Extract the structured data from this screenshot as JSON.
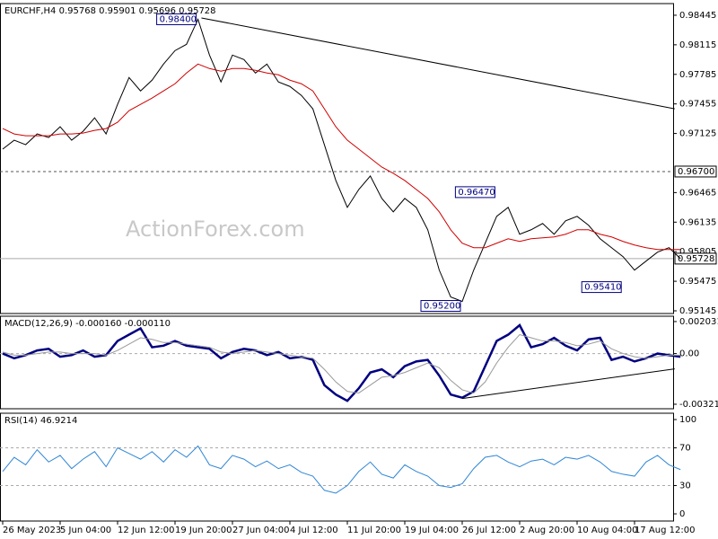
{
  "chart_data": [
    {
      "type": "line",
      "title": "EURCHF,H4  0.95768 0.95901 0.95696 0.95728",
      "watermark": "ActionForex.com",
      "ylim": [
        0.95115,
        0.98575
      ],
      "yticks": [
        0.98445,
        0.98115,
        0.97785,
        0.97455,
        0.97125,
        0.96465,
        0.96135,
        0.95805,
        0.95475,
        0.95145
      ],
      "series": [
        {
          "color": "#000000",
          "values": [
            0.9695,
            0.9705,
            0.97,
            0.9712,
            0.9708,
            0.972,
            0.9705,
            0.9715,
            0.973,
            0.9712,
            0.9745,
            0.9775,
            0.976,
            0.9772,
            0.979,
            0.9805,
            0.9812,
            0.984,
            0.98,
            0.977,
            0.98,
            0.9795,
            0.978,
            0.979,
            0.977,
            0.9765,
            0.9755,
            0.974,
            0.97,
            0.966,
            0.963,
            0.965,
            0.9665,
            0.964,
            0.9625,
            0.964,
            0.963,
            0.9605,
            0.956,
            0.953,
            0.9525,
            0.956,
            0.959,
            0.962,
            0.963,
            0.96,
            0.9605,
            0.9612,
            0.96,
            0.9615,
            0.962,
            0.961,
            0.9595,
            0.9585,
            0.9575,
            0.956,
            0.957,
            0.958,
            0.9585,
            0.95728
          ]
        },
        {
          "color": "#d00000",
          "values": [
            0.9718,
            0.9712,
            0.971,
            0.971,
            0.971,
            0.9712,
            0.9712,
            0.9713,
            0.9716,
            0.9718,
            0.9725,
            0.9738,
            0.9745,
            0.9752,
            0.976,
            0.9768,
            0.978,
            0.979,
            0.9785,
            0.9782,
            0.9785,
            0.9785,
            0.9783,
            0.978,
            0.9778,
            0.9772,
            0.9768,
            0.976,
            0.974,
            0.972,
            0.9705,
            0.9695,
            0.9685,
            0.9675,
            0.9668,
            0.966,
            0.965,
            0.964,
            0.9625,
            0.9605,
            0.959,
            0.9585,
            0.9585,
            0.959,
            0.9595,
            0.9592,
            0.9595,
            0.9596,
            0.9597,
            0.96,
            0.9605,
            0.9605,
            0.96,
            0.9597,
            0.9592,
            0.9588,
            0.9585,
            0.9583,
            0.9583,
            0.9583
          ]
        }
      ],
      "levels": [
        {
          "value": 0.967,
          "label": "0.96700",
          "style": "dashed"
        },
        {
          "value": 0.95728,
          "label": "0.95728",
          "style": "solid"
        }
      ],
      "annotations": [
        {
          "x": 17,
          "value": 0.984,
          "label": "0.98400"
        },
        {
          "x": 43,
          "value": 0.9647,
          "label": "0.96470"
        },
        {
          "x": 40,
          "value": 0.952,
          "label": "0.95200"
        },
        {
          "x": 54,
          "value": 0.9541,
          "label": "0.95410"
        }
      ],
      "trendlines": [
        {
          "x": [
            17.3,
            58.5
          ],
          "y": [
            0.98415,
            0.974
          ]
        }
      ]
    },
    {
      "type": "line",
      "title": "MACD(12,26,9) -0.000160 -0.000110",
      "grid": "inner",
      "ylim": [
        -0.0035,
        0.00237
      ],
      "yticks": [
        0.002031,
        {
          "value": 0,
          "label": "0.00"
        },
        -0.003214
      ],
      "series": [
        {
          "color": "#000080",
          "bold": true,
          "values": [
            0,
            -0.0003,
            -0.0001,
            0.0002,
            0.0003,
            -0.0002,
            -0.0001,
            0.0002,
            -0.0002,
            -0.0001,
            0.0008,
            0.0012,
            0.0016,
            0.0004,
            0.0005,
            0.0008,
            0.0005,
            0.0004,
            0.0003,
            -0.0003,
            0.0001,
            0.0003,
            0.0002,
            -0.0001,
            0.0001,
            -0.0003,
            -0.0002,
            -0.0004,
            -0.002,
            -0.0026,
            -0.003,
            -0.0022,
            -0.0012,
            -0.001,
            -0.0015,
            -0.0008,
            -0.0005,
            -0.0004,
            -0.0014,
            -0.0026,
            -0.0028,
            -0.0024,
            -0.0008,
            0.0008,
            0.0012,
            0.0018,
            0.0004,
            0.0006,
            0.001,
            0.0005,
            0.0002,
            0.0009,
            0.001,
            -0.0004,
            -0.0002,
            -0.0005,
            -0.0003,
            0,
            -0.0001,
            -0.0002
          ]
        },
        {
          "color": "#999999",
          "values": [
            0.0001,
            -0.0001,
            -0.0001,
            0,
            0.0001,
            0.0001,
            0,
            0,
            0,
            -0.0001,
            0.0002,
            0.0006,
            0.001,
            0.0009,
            0.0007,
            0.0007,
            0.0006,
            0.0005,
            0.0004,
            0.0001,
            0,
            0.0001,
            0.0002,
            0.0001,
            0,
            -0.0001,
            -0.0002,
            -0.0003,
            -0.001,
            -0.0018,
            -0.0024,
            -0.0025,
            -0.002,
            -0.0015,
            -0.0014,
            -0.0012,
            -0.0009,
            -0.0006,
            -0.0009,
            -0.0017,
            -0.0023,
            -0.0025,
            -0.0018,
            -0.0006,
            0.0004,
            0.0012,
            0.001,
            0.0008,
            0.0008,
            0.0007,
            0.0005,
            0.0006,
            0.0008,
            0.0003,
            0,
            -0.0002,
            -0.0003,
            -0.0002,
            -0.0001,
            -0.0001
          ]
        }
      ],
      "trendlines": [
        {
          "x": [
            40,
            58.5
          ],
          "y": [
            -0.00285,
            -0.00097
          ]
        }
      ]
    },
    {
      "type": "line",
      "title": "RSI(14) 46.9214",
      "grid": "inner",
      "ylim": [
        -7.6,
        106.7
      ],
      "yticks": [
        100,
        70,
        30,
        0
      ],
      "series": [
        {
          "color": "#2f86d6",
          "values": [
            45,
            60,
            52,
            68,
            55,
            62,
            48,
            58,
            66,
            50,
            70,
            64,
            58,
            66,
            55,
            68,
            60,
            72,
            52,
            48,
            62,
            58,
            50,
            56,
            48,
            52,
            44,
            40,
            25,
            22,
            30,
            45,
            55,
            42,
            38,
            52,
            45,
            40,
            30,
            28,
            32,
            48,
            60,
            62,
            55,
            50,
            56,
            58,
            52,
            60,
            58,
            62,
            55,
            45,
            42,
            40,
            55,
            62,
            52,
            46.9214
          ]
        }
      ],
      "categories": [
        "26 May 2023",
        null,
        null,
        null,
        null,
        "5 Jun 04:00",
        null,
        null,
        null,
        null,
        "12 Jun 12:00",
        null,
        null,
        null,
        null,
        "19 Jun 20:00",
        null,
        null,
        null,
        null,
        "27 Jun 04:00",
        null,
        null,
        null,
        null,
        "4 Jul 12:00",
        null,
        null,
        null,
        null,
        "11 Jul 20:00",
        null,
        null,
        null,
        null,
        "19 Jul 04:00",
        null,
        null,
        null,
        null,
        "26 Jul 12:00",
        null,
        null,
        null,
        null,
        "2 Aug 20:00",
        null,
        null,
        null,
        null,
        "10 Aug 04:00",
        null,
        null,
        null,
        null,
        "17 Aug 12:00",
        null,
        null,
        null,
        null
      ]
    }
  ]
}
